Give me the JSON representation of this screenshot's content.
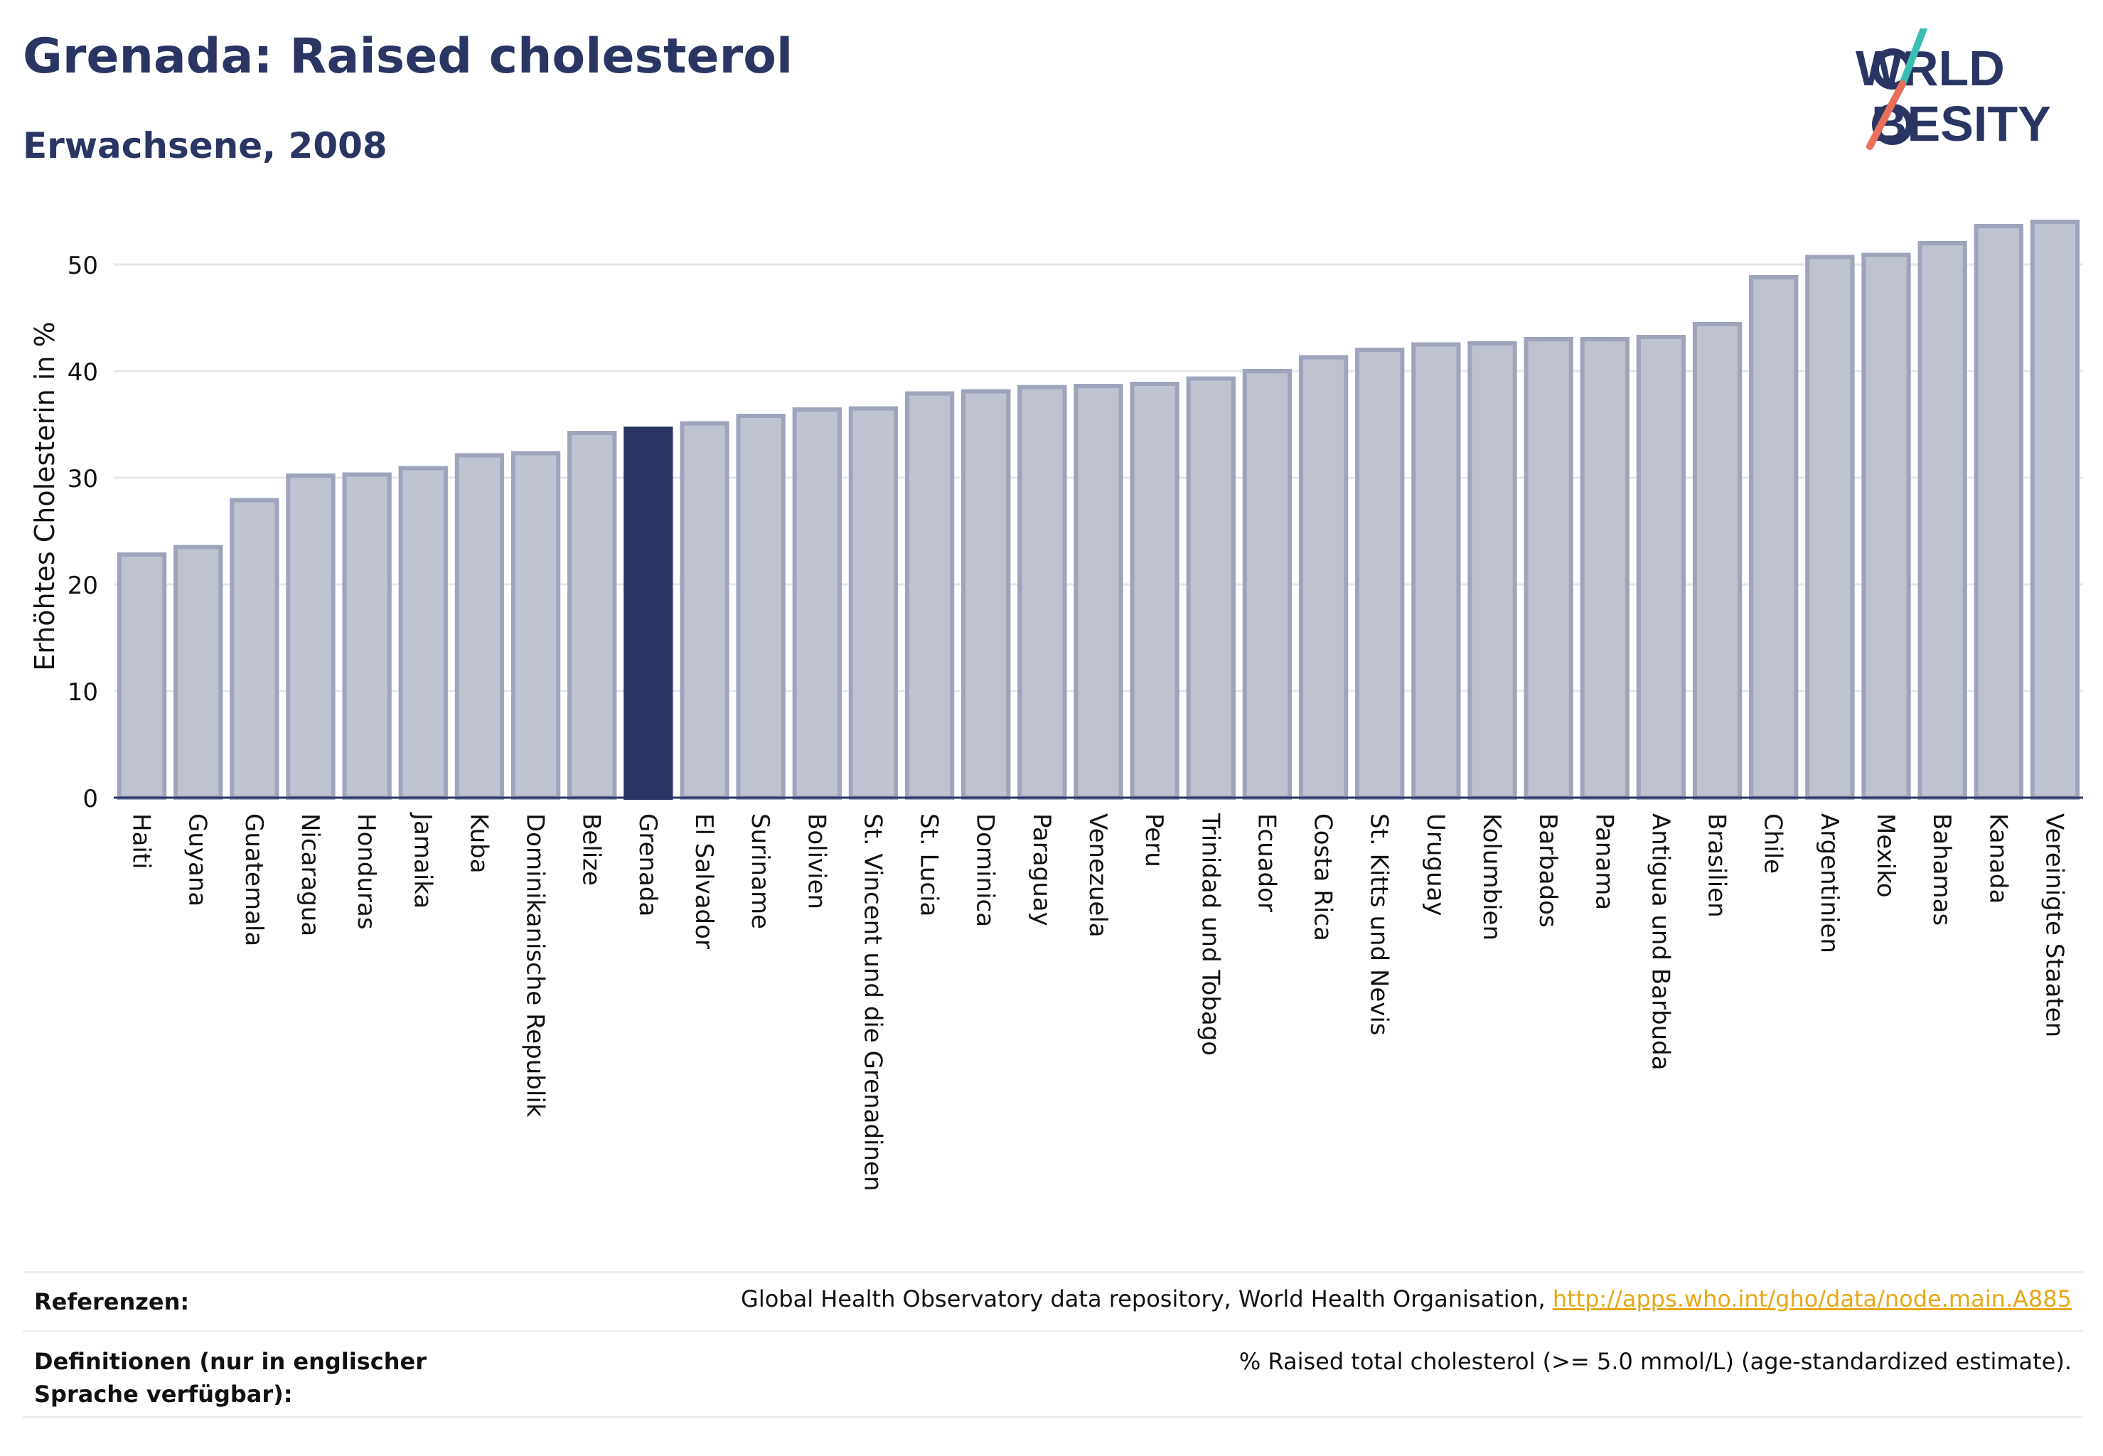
{
  "header": {
    "title": "Grenada: Raised cholesterol",
    "subtitle": "Erwachsene, 2008",
    "logo_text": "WORLD OBESITY"
  },
  "colors": {
    "bar": "#bfc3d0",
    "bar_border": "#9ea4bb",
    "highlight": "#2b3563",
    "title": "#2b3563",
    "grid": "#e6e7ec",
    "link": "#e6a817",
    "logo_teal": "#3bbfb2",
    "logo_coral": "#e8705a"
  },
  "chart_data": {
    "type": "bar",
    "ylabel": "Erhöhtes Cholesterin in %",
    "ylim": [
      0,
      56
    ],
    "yticks": [
      0,
      10,
      20,
      30,
      40,
      50
    ],
    "highlight": "Grenada",
    "grid": true,
    "categories": [
      "Haiti",
      "Guyana",
      "Guatemala",
      "Nicaragua",
      "Honduras",
      "Jamaika",
      "Kuba",
      "Dominikanische Republik",
      "Belize",
      "Grenada",
      "El Salvador",
      "Suriname",
      "Bolivien",
      "St. Vincent und die Grenadinen",
      "St. Lucia",
      "Dominica",
      "Paraguay",
      "Venezuela",
      "Peru",
      "Trinidad und Tobago",
      "Ecuador",
      "Costa Rica",
      "St. Kitts und Nevis",
      "Uruguay",
      "Kolumbien",
      "Barbados",
      "Panama",
      "Antigua und Barbuda",
      "Brasilien",
      "Chile",
      "Argentinien",
      "Mexiko",
      "Bahamas",
      "Kanada",
      "Vereinigte Staaten"
    ],
    "values": [
      22.8,
      23.5,
      27.9,
      30.2,
      30.3,
      30.9,
      32.1,
      32.3,
      34.2,
      34.6,
      35.1,
      35.8,
      36.4,
      36.5,
      37.9,
      38.1,
      38.5,
      38.6,
      38.8,
      39.3,
      40.0,
      41.3,
      42.0,
      42.5,
      42.6,
      43.0,
      43.0,
      43.2,
      44.4,
      48.8,
      50.7,
      50.9,
      52.0,
      53.6,
      54.0
    ]
  },
  "references": {
    "ref_label": "Referenzen:",
    "ref_text": "Global Health Observatory data repository, World Health Organisation, ",
    "ref_link": "http://apps.who.int/gho/data/node.main.A885",
    "def_label": "Definitionen (nur in englischer Sprache verfügbar):",
    "def_text": "% Raised total cholesterol (>= 5.0 mmol/L) (age-standardized estimate)."
  }
}
